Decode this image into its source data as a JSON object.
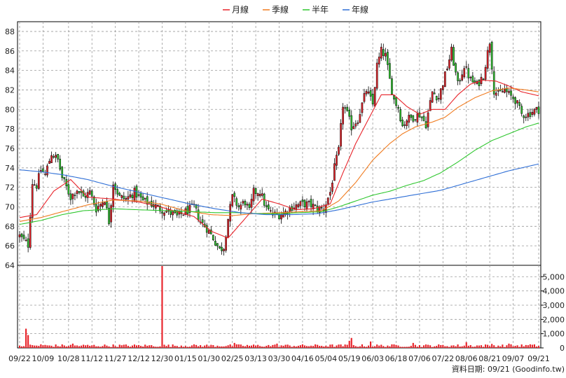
{
  "chart_data": {
    "type": "candlestick",
    "source_label": "資料日期: 09/21  (Goodinfo.tw)",
    "legend": [
      {
        "name": "月線",
        "color": "#e8232a"
      },
      {
        "name": "季線",
        "color": "#f07b1f"
      },
      {
        "name": "半年",
        "color": "#2fc72f"
      },
      {
        "name": "年線",
        "color": "#2f6fd6"
      }
    ],
    "price_axis": {
      "ylim": [
        64,
        89
      ],
      "ticks": [
        64,
        66,
        68,
        70,
        72,
        74,
        76,
        78,
        80,
        82,
        84,
        86,
        88
      ]
    },
    "volume_axis": {
      "ylim": [
        0,
        5800
      ],
      "ticks": [
        0,
        1000,
        2000,
        3000,
        4000,
        5000
      ],
      "tick_labels": [
        "0",
        "1,000",
        "2,000",
        "3,000",
        "4,000",
        "5,000"
      ]
    },
    "x_axis": {
      "n": 245,
      "labels": [
        "09/22",
        "10/09",
        "10/28",
        "11/12",
        "11/27",
        "12/12",
        "12/30",
        "01/15",
        "01/30",
        "02/25",
        "03/13",
        "03/30",
        "04/16",
        "05/04",
        "05/19",
        "06/03",
        "06/18",
        "07/06",
        "07/22",
        "08/06",
        "08/21",
        "09/07",
        "09/21"
      ],
      "label_index": [
        0,
        11,
        23,
        34,
        45,
        56,
        67,
        78,
        89,
        100,
        111,
        122,
        133,
        144,
        155,
        166,
        177,
        188,
        199,
        210,
        221,
        232,
        244
      ]
    },
    "close_anchors": [
      [
        0,
        67.0
      ],
      [
        4,
        66.1
      ],
      [
        6,
        72.5
      ],
      [
        8,
        72.2
      ],
      [
        10,
        73.8
      ],
      [
        12,
        73.3
      ],
      [
        15,
        75.5
      ],
      [
        18,
        74.8
      ],
      [
        20,
        73.0
      ],
      [
        24,
        71.0
      ],
      [
        27,
        71.8
      ],
      [
        30,
        71.0
      ],
      [
        33,
        71.5
      ],
      [
        36,
        69.8
      ],
      [
        40,
        70.8
      ],
      [
        42,
        68.5
      ],
      [
        44,
        72.5
      ],
      [
        47,
        71.0
      ],
      [
        50,
        70.8
      ],
      [
        54,
        71.5
      ],
      [
        58,
        70.6
      ],
      [
        62,
        70.3
      ],
      [
        66,
        69.8
      ],
      [
        70,
        69.5
      ],
      [
        74,
        69.0
      ],
      [
        78,
        69.5
      ],
      [
        82,
        70.0
      ],
      [
        85,
        68.5
      ],
      [
        88,
        67.8
      ],
      [
        91,
        66.8
      ],
      [
        94,
        65.6
      ],
      [
        96,
        65.9
      ],
      [
        98,
        68.8
      ],
      [
        100,
        71.0
      ],
      [
        103,
        70.0
      ],
      [
        106,
        70.5
      ],
      [
        108,
        69.5
      ],
      [
        110,
        71.5
      ],
      [
        113,
        71.6
      ],
      [
        116,
        69.8
      ],
      [
        119,
        69.2
      ],
      [
        122,
        69.2
      ],
      [
        125,
        69.5
      ],
      [
        128,
        70.0
      ],
      [
        131,
        70.2
      ],
      [
        134,
        70.3
      ],
      [
        137,
        70.2
      ],
      [
        140,
        69.8
      ],
      [
        143,
        69.8
      ],
      [
        146,
        71.5
      ],
      [
        148,
        74.0
      ],
      [
        150,
        75.8
      ],
      [
        152,
        80.5
      ],
      [
        154,
        79.5
      ],
      [
        156,
        78.2
      ],
      [
        159,
        79.0
      ],
      [
        163,
        82.0
      ],
      [
        166,
        80.5
      ],
      [
        168,
        84.5
      ],
      [
        170,
        86.0
      ],
      [
        172,
        85.5
      ],
      [
        174,
        83.0
      ],
      [
        176,
        81.0
      ],
      [
        178,
        80.2
      ],
      [
        180,
        78.3
      ],
      [
        182,
        79.0
      ],
      [
        185,
        79.2
      ],
      [
        188,
        79.5
      ],
      [
        191,
        78.5
      ],
      [
        194,
        81.8
      ],
      [
        197,
        81.2
      ],
      [
        200,
        83.5
      ],
      [
        203,
        86.0
      ],
      [
        206,
        82.5
      ],
      [
        209,
        84.5
      ],
      [
        212,
        83.0
      ],
      [
        215,
        82.5
      ],
      [
        218,
        83.5
      ],
      [
        221,
        87.0
      ],
      [
        223,
        82.0
      ],
      [
        225,
        81.5
      ],
      [
        228,
        82.0
      ],
      [
        230,
        81.5
      ],
      [
        233,
        81.0
      ],
      [
        236,
        79.5
      ],
      [
        239,
        79.5
      ],
      [
        241,
        79.8
      ],
      [
        244,
        80.0
      ]
    ],
    "ma_curves": {
      "月線": [
        [
          0,
          68.9
        ],
        [
          8,
          69.2
        ],
        [
          16,
          71.6
        ],
        [
          24,
          72.8
        ],
        [
          32,
          71.0
        ],
        [
          44,
          70.8
        ],
        [
          56,
          70.5
        ],
        [
          66,
          70.0
        ],
        [
          74,
          69.5
        ],
        [
          82,
          69.0
        ],
        [
          90,
          67.5
        ],
        [
          98,
          66.8
        ],
        [
          106,
          68.8
        ],
        [
          114,
          70.8
        ],
        [
          122,
          70.3
        ],
        [
          130,
          69.7
        ],
        [
          138,
          69.8
        ],
        [
          146,
          70.3
        ],
        [
          152,
          73.5
        ],
        [
          158,
          76.5
        ],
        [
          164,
          79.0
        ],
        [
          170,
          81.5
        ],
        [
          176,
          81.5
        ],
        [
          182,
          80.3
        ],
        [
          188,
          79.5
        ],
        [
          194,
          80.0
        ],
        [
          200,
          80.0
        ],
        [
          206,
          81.5
        ],
        [
          212,
          82.6
        ],
        [
          218,
          83.0
        ],
        [
          224,
          82.9
        ],
        [
          230,
          82.4
        ],
        [
          236,
          81.8
        ],
        [
          244,
          81.4
        ]
      ],
      "季線": [
        [
          0,
          68.5
        ],
        [
          10,
          68.9
        ],
        [
          20,
          69.5
        ],
        [
          32,
          70.2
        ],
        [
          44,
          70.7
        ],
        [
          56,
          70.6
        ],
        [
          66,
          70.3
        ],
        [
          78,
          69.6
        ],
        [
          90,
          69.2
        ],
        [
          100,
          69.1
        ],
        [
          110,
          69.3
        ],
        [
          122,
          69.4
        ],
        [
          132,
          69.5
        ],
        [
          142,
          69.6
        ],
        [
          150,
          70.6
        ],
        [
          158,
          72.5
        ],
        [
          166,
          74.8
        ],
        [
          174,
          76.5
        ],
        [
          180,
          77.5
        ],
        [
          186,
          78.2
        ],
        [
          194,
          78.7
        ],
        [
          200,
          79.2
        ],
        [
          206,
          80.2
        ],
        [
          214,
          81.2
        ],
        [
          222,
          81.9
        ],
        [
          230,
          82.2
        ],
        [
          238,
          82.0
        ],
        [
          244,
          81.8
        ]
      ],
      "半年": [
        [
          0,
          68.2
        ],
        [
          10,
          68.6
        ],
        [
          20,
          69.2
        ],
        [
          30,
          69.6
        ],
        [
          44,
          69.8
        ],
        [
          56,
          69.7
        ],
        [
          70,
          69.6
        ],
        [
          82,
          69.5
        ],
        [
          92,
          69.4
        ],
        [
          102,
          69.4
        ],
        [
          112,
          69.3
        ],
        [
          122,
          69.3
        ],
        [
          132,
          69.4
        ],
        [
          142,
          69.5
        ],
        [
          150,
          70.0
        ],
        [
          158,
          70.6
        ],
        [
          166,
          71.2
        ],
        [
          174,
          71.6
        ],
        [
          182,
          72.2
        ],
        [
          190,
          72.7
        ],
        [
          198,
          73.5
        ],
        [
          206,
          74.6
        ],
        [
          214,
          75.8
        ],
        [
          222,
          76.8
        ],
        [
          230,
          77.5
        ],
        [
          238,
          78.2
        ],
        [
          244,
          78.6
        ]
      ],
      "年線": [
        [
          0,
          73.8
        ],
        [
          10,
          73.6
        ],
        [
          20,
          73.3
        ],
        [
          32,
          72.8
        ],
        [
          44,
          72.1
        ],
        [
          56,
          71.5
        ],
        [
          68,
          70.9
        ],
        [
          80,
          70.3
        ],
        [
          92,
          69.8
        ],
        [
          104,
          69.4
        ],
        [
          116,
          69.2
        ],
        [
          128,
          69.2
        ],
        [
          140,
          69.3
        ],
        [
          150,
          69.7
        ],
        [
          158,
          70.1
        ],
        [
          166,
          70.5
        ],
        [
          174,
          70.8
        ],
        [
          182,
          71.1
        ],
        [
          190,
          71.4
        ],
        [
          198,
          71.7
        ],
        [
          206,
          72.2
        ],
        [
          214,
          72.7
        ],
        [
          222,
          73.2
        ],
        [
          230,
          73.7
        ],
        [
          238,
          74.1
        ],
        [
          244,
          74.4
        ]
      ]
    },
    "volume_spikes": [
      [
        3,
        1350
      ],
      [
        4,
        900
      ],
      [
        67,
        5750
      ],
      [
        156,
        700
      ],
      [
        155,
        500
      ],
      [
        121,
        300
      ],
      [
        101,
        350
      ],
      [
        25,
        300
      ],
      [
        10,
        250
      ],
      [
        210,
        400
      ],
      [
        165,
        450
      ],
      [
        185,
        350
      ],
      [
        230,
        300
      ],
      [
        222,
        280
      ],
      [
        240,
        250
      ]
    ],
    "volume_base": 160
  }
}
